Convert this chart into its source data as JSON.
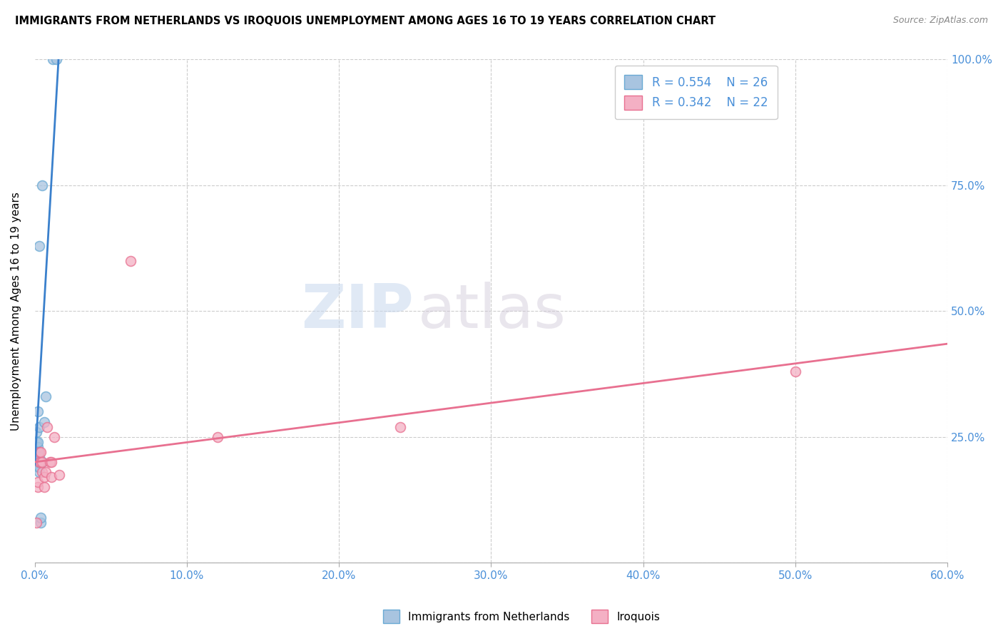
{
  "title": "IMMIGRANTS FROM NETHERLANDS VS IROQUOIS UNEMPLOYMENT AMONG AGES 16 TO 19 YEARS CORRELATION CHART",
  "source": "Source: ZipAtlas.com",
  "xlabel_ticks": [
    "0.0%",
    "10.0%",
    "20.0%",
    "30.0%",
    "40.0%",
    "50.0%",
    "60.0%"
  ],
  "xlabel_vals": [
    0.0,
    0.1,
    0.2,
    0.3,
    0.4,
    0.5,
    0.6
  ],
  "ylabel": "Unemployment Among Ages 16 to 19 years",
  "ylabel_ticks": [
    "100.0%",
    "75.0%",
    "50.0%",
    "25.0%",
    "0.0%"
  ],
  "ylabel_right_vals": [
    1.0,
    0.75,
    0.5,
    0.25,
    0.0
  ],
  "ylabel_right_labels": [
    "100.0%",
    "75.0%",
    "50.0%",
    "25.0%",
    ""
  ],
  "xlim": [
    0.0,
    0.6
  ],
  "ylim": [
    0.0,
    1.0
  ],
  "blue_color": "#a8c4e0",
  "blue_edge": "#6aaad4",
  "pink_color": "#f4b0c4",
  "pink_edge": "#e87090",
  "blue_R": "R = 0.554",
  "blue_N": "N = 26",
  "pink_R": "R = 0.342",
  "pink_N": "N = 22",
  "legend_label_blue": "Immigrants from Netherlands",
  "legend_label_pink": "Iroquois",
  "watermark_zip": "ZIP",
  "watermark_atlas": "atlas",
  "blue_scatter_x": [
    0.001,
    0.001,
    0.001,
    0.001,
    0.001,
    0.002,
    0.002,
    0.002,
    0.002,
    0.002,
    0.002,
    0.002,
    0.003,
    0.003,
    0.003,
    0.003,
    0.003,
    0.003,
    0.004,
    0.004,
    0.005,
    0.005,
    0.006,
    0.007,
    0.012,
    0.014
  ],
  "blue_scatter_y": [
    0.2,
    0.21,
    0.22,
    0.24,
    0.26,
    0.19,
    0.2,
    0.21,
    0.22,
    0.23,
    0.24,
    0.3,
    0.18,
    0.19,
    0.2,
    0.21,
    0.27,
    0.63,
    0.08,
    0.09,
    0.75,
    0.2,
    0.28,
    0.33,
    1.0,
    1.0
  ],
  "pink_scatter_x": [
    0.001,
    0.002,
    0.002,
    0.003,
    0.003,
    0.004,
    0.004,
    0.005,
    0.005,
    0.006,
    0.006,
    0.007,
    0.008,
    0.01,
    0.011,
    0.011,
    0.013,
    0.016,
    0.063,
    0.12,
    0.24,
    0.5
  ],
  "pink_scatter_y": [
    0.08,
    0.15,
    0.16,
    0.2,
    0.22,
    0.2,
    0.22,
    0.18,
    0.2,
    0.15,
    0.17,
    0.18,
    0.27,
    0.2,
    0.17,
    0.2,
    0.25,
    0.175,
    0.6,
    0.25,
    0.27,
    0.38
  ],
  "blue_line_x": [
    0.0,
    0.016
  ],
  "blue_line_y": [
    0.195,
    1.02
  ],
  "pink_line_x": [
    0.0,
    0.6
  ],
  "pink_line_y": [
    0.2,
    0.435
  ],
  "marker_size": 100,
  "alpha": 0.75
}
